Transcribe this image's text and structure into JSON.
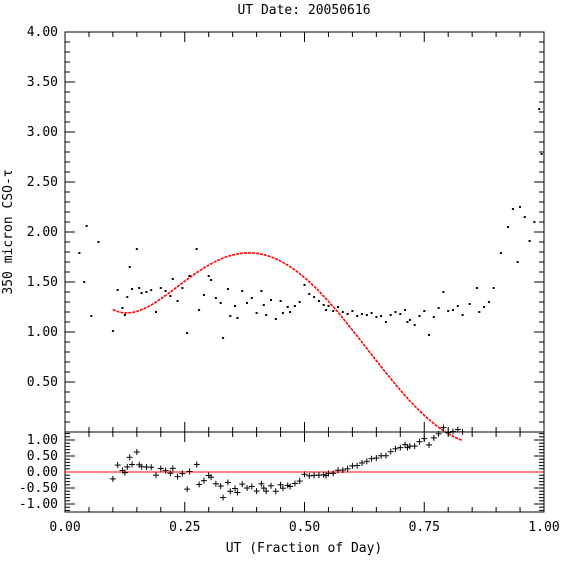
{
  "chart_data": {
    "type": "scatter",
    "title": "UT Date: 20050616",
    "xlabel": "UT (Fraction of Day)",
    "ylabel": "350 micron CSO-τ",
    "xlim": [
      0.0,
      1.0
    ],
    "ylim": [
      0.0,
      4.0
    ],
    "resid_ylim": [
      -1.25,
      1.25
    ],
    "x_ticks": [
      "0.00",
      "0.25",
      "0.50",
      "0.75",
      "1.00"
    ],
    "y_ticks": [
      "0.50",
      "1.00",
      "1.50",
      "2.00",
      "2.50",
      "3.00",
      "3.50",
      "4.00"
    ],
    "resid_ticks": [
      "1.00",
      "0.50",
      "0.00",
      "-0.50",
      "-1.00"
    ],
    "colors": {
      "fit": "#ff0000",
      "points": "#000000",
      "zero_line": "#ff0000"
    },
    "fit_range": [
      0.1,
      0.83
    ],
    "fit_poly": [
      1.225,
      -1.87,
      27.84,
      -69.98,
      58.61,
      -15.91
    ],
    "points": [
      [
        0.03,
        1.79
      ],
      [
        0.04,
        1.5
      ],
      [
        0.045,
        2.06
      ],
      [
        0.055,
        1.16
      ],
      [
        0.07,
        1.9
      ],
      [
        0.1,
        1.01
      ],
      [
        0.11,
        1.42
      ],
      [
        0.12,
        1.24
      ],
      [
        0.125,
        1.17
      ],
      [
        0.13,
        1.35
      ],
      [
        0.135,
        1.65
      ],
      [
        0.14,
        1.43
      ],
      [
        0.15,
        1.83
      ],
      [
        0.155,
        1.44
      ],
      [
        0.16,
        1.39
      ],
      [
        0.17,
        1.4
      ],
      [
        0.18,
        1.42
      ],
      [
        0.19,
        1.2
      ],
      [
        0.2,
        1.44
      ],
      [
        0.21,
        1.41
      ],
      [
        0.22,
        1.36
      ],
      [
        0.225,
        1.53
      ],
      [
        0.235,
        1.31
      ],
      [
        0.245,
        1.44
      ],
      [
        0.255,
        0.99
      ],
      [
        0.26,
        1.56
      ],
      [
        0.275,
        1.83
      ],
      [
        0.28,
        1.22
      ],
      [
        0.29,
        1.37
      ],
      [
        0.3,
        1.56
      ],
      [
        0.305,
        1.52
      ],
      [
        0.315,
        1.34
      ],
      [
        0.325,
        1.29
      ],
      [
        0.33,
        0.94
      ],
      [
        0.34,
        1.43
      ],
      [
        0.345,
        1.16
      ],
      [
        0.355,
        1.26
      ],
      [
        0.36,
        1.14
      ],
      [
        0.37,
        1.41
      ],
      [
        0.38,
        1.29
      ],
      [
        0.39,
        1.34
      ],
      [
        0.4,
        1.19
      ],
      [
        0.41,
        1.41
      ],
      [
        0.415,
        1.27
      ],
      [
        0.42,
        1.17
      ],
      [
        0.43,
        1.32
      ],
      [
        0.44,
        1.13
      ],
      [
        0.45,
        1.31
      ],
      [
        0.455,
        1.19
      ],
      [
        0.465,
        1.25
      ],
      [
        0.47,
        1.2
      ],
      [
        0.48,
        1.26
      ],
      [
        0.49,
        1.3
      ],
      [
        0.5,
        1.47
      ],
      [
        0.51,
        1.38
      ],
      [
        0.52,
        1.35
      ],
      [
        0.53,
        1.31
      ],
      [
        0.54,
        1.27
      ],
      [
        0.545,
        1.22
      ],
      [
        0.55,
        1.26
      ],
      [
        0.56,
        1.21
      ],
      [
        0.57,
        1.25
      ],
      [
        0.58,
        1.2
      ],
      [
        0.59,
        1.18
      ],
      [
        0.6,
        1.21
      ],
      [
        0.61,
        1.16
      ],
      [
        0.62,
        1.18
      ],
      [
        0.63,
        1.17
      ],
      [
        0.64,
        1.19
      ],
      [
        0.65,
        1.15
      ],
      [
        0.66,
        1.16
      ],
      [
        0.67,
        1.1
      ],
      [
        0.68,
        1.17
      ],
      [
        0.69,
        1.2
      ],
      [
        0.7,
        1.18
      ],
      [
        0.71,
        1.22
      ],
      [
        0.715,
        1.1
      ],
      [
        0.72,
        1.12
      ],
      [
        0.73,
        1.07
      ],
      [
        0.74,
        1.16
      ],
      [
        0.75,
        1.21
      ],
      [
        0.76,
        0.97
      ],
      [
        0.77,
        1.15
      ],
      [
        0.78,
        1.24
      ],
      [
        0.79,
        1.4
      ],
      [
        0.8,
        1.21
      ],
      [
        0.81,
        1.22
      ],
      [
        0.82,
        1.26
      ],
      [
        0.83,
        1.17
      ],
      [
        0.845,
        1.28
      ],
      [
        0.86,
        1.44
      ],
      [
        0.865,
        1.2
      ],
      [
        0.875,
        1.25
      ],
      [
        0.885,
        1.3
      ],
      [
        0.895,
        1.44
      ],
      [
        0.91,
        1.79
      ],
      [
        0.925,
        2.05
      ],
      [
        0.935,
        2.23
      ],
      [
        0.945,
        1.7
      ],
      [
        0.95,
        2.25
      ],
      [
        0.96,
        2.15
      ],
      [
        0.97,
        1.91
      ],
      [
        0.98,
        2.1
      ],
      [
        0.99,
        3.23
      ],
      [
        0.995,
        2.78
      ]
    ]
  }
}
